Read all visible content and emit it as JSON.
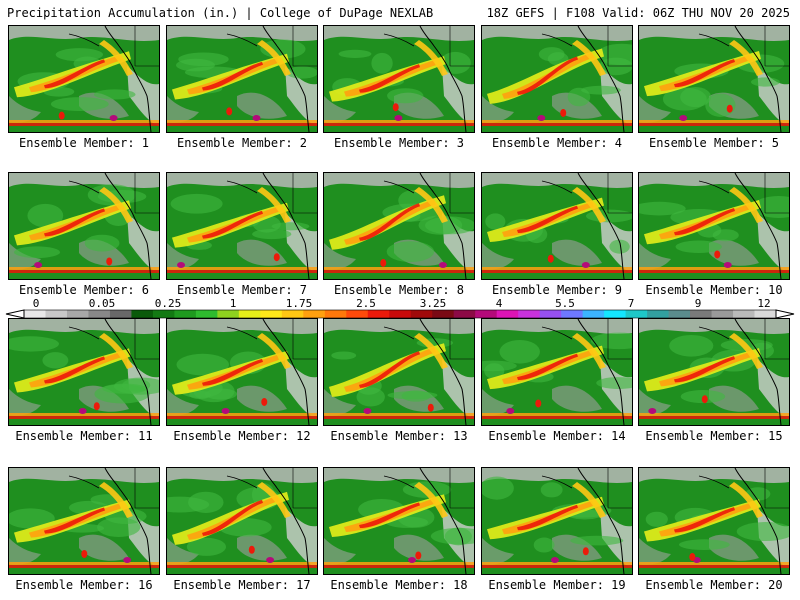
{
  "header": {
    "left": "Precipitation Accumulation (in.) | College of DuPage NEXLAB",
    "right": "18Z GEFS | F108 Valid: 06Z THU NOV 20 2025"
  },
  "colorbar": {
    "tick_labels": [
      "0",
      "0.05",
      "0.25",
      "1",
      "1.75",
      "2.5",
      "3.25",
      "4",
      "5.5",
      "7",
      "9",
      "12"
    ],
    "colors": [
      "#e8e8e8",
      "#c8c8c8",
      "#a8a8a8",
      "#888888",
      "#686868",
      "#0a5a0a",
      "#137a13",
      "#1f9a1f",
      "#2fbb2f",
      "#8fd21f",
      "#e6ee19",
      "#ffe81a",
      "#ffc814",
      "#ffa00f",
      "#ff780a",
      "#ff4a0a",
      "#ec1a0a",
      "#c80a0a",
      "#a00a0a",
      "#7a0a14",
      "#8c0a46",
      "#b40a7a",
      "#dc14b4",
      "#c832dc",
      "#9650f0",
      "#6e78ff",
      "#3cb4ff",
      "#14e6ff",
      "#1ec8c8",
      "#32a0a0",
      "#5a8c8c",
      "#7a7a7a",
      "#9a9a9a",
      "#bababa",
      "#dadada"
    ]
  },
  "panels": [
    {
      "label": "Ensemble Member: 1"
    },
    {
      "label": "Ensemble Member: 2"
    },
    {
      "label": "Ensemble Member: 3"
    },
    {
      "label": "Ensemble Member: 4"
    },
    {
      "label": "Ensemble Member: 5"
    },
    {
      "label": "Ensemble Member: 6"
    },
    {
      "label": "Ensemble Member: 7"
    },
    {
      "label": "Ensemble Member: 8"
    },
    {
      "label": "Ensemble Member: 9"
    },
    {
      "label": "Ensemble Member: 10"
    },
    {
      "label": "Ensemble Member: 11"
    },
    {
      "label": "Ensemble Member: 12"
    },
    {
      "label": "Ensemble Member: 13"
    },
    {
      "label": "Ensemble Member: 14"
    },
    {
      "label": "Ensemble Member: 15"
    },
    {
      "label": "Ensemble Member: 16"
    },
    {
      "label": "Ensemble Member: 17"
    },
    {
      "label": "Ensemble Member: 18"
    },
    {
      "label": "Ensemble Member: 19"
    },
    {
      "label": "Ensemble Member: 20"
    }
  ]
}
